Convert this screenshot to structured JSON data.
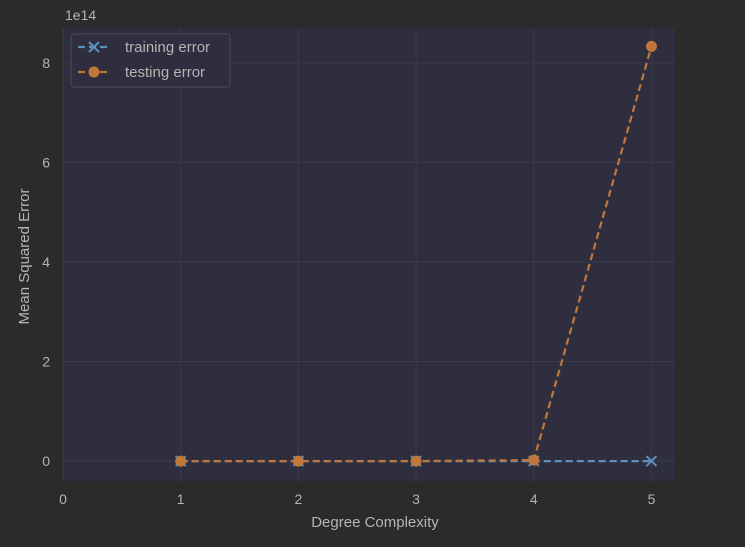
{
  "chart_data": {
    "type": "line",
    "title": "",
    "xlabel": "Degree Complexity",
    "ylabel": "Mean Squared Error",
    "y_offset_text": "1e14",
    "xlim": [
      0,
      5.2
    ],
    "ylim": [
      -0.4,
      8.7
    ],
    "x_ticks": [
      0,
      1,
      2,
      3,
      4,
      5
    ],
    "x_tick_labels": [
      "0",
      "1",
      "2",
      "3",
      "4",
      "5"
    ],
    "y_ticks": [
      0,
      2,
      4,
      6,
      8
    ],
    "y_tick_labels": [
      "0",
      "2",
      "4",
      "6",
      "8"
    ],
    "y_scale_note": "values in units of 1e14",
    "grid": true,
    "legend_placement": "top-left",
    "series": [
      {
        "name": "training error",
        "marker": "x",
        "line_style": "dashed",
        "color": "#5e8fbf",
        "x": [
          1,
          2,
          3,
          4,
          5
        ],
        "y": [
          0.0,
          0.0,
          0.0,
          0.0,
          0.0
        ]
      },
      {
        "name": "testing error",
        "marker": "o",
        "line_style": "dashed",
        "color": "#c0773b",
        "x": [
          1,
          2,
          3,
          4,
          5
        ],
        "y": [
          0.0,
          0.0,
          0.0,
          0.02,
          8.33
        ]
      }
    ]
  },
  "colors": {
    "figure_bg": "#2b2b2b",
    "axes_bg": "#2e2e3e",
    "grid": "#3a3a4a",
    "text": "#b4b4b4",
    "legend_bg": "#2e2e3e",
    "legend_border": "#4a4a58"
  }
}
